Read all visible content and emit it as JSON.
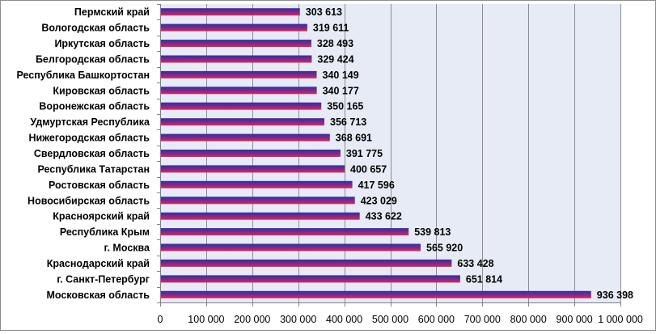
{
  "chart_data": {
    "type": "bar",
    "orientation": "horizontal",
    "categories": [
      "Пермский край",
      "Вологодская область",
      "Иркутская область",
      "Белгородская область",
      "Республика Башкортостан",
      "Кировская область",
      "Воронежская область",
      "Удмуртская Республика",
      "Нижегородская область",
      "Свердловская область",
      "Республика Татарстан",
      "Ростовская область",
      "Новосибирская область",
      "Красноярский край",
      "Республика Крым",
      "г. Москва",
      "Краснодарский край",
      "г. Санкт-Петербург",
      "Московская область"
    ],
    "values": [
      303613,
      319611,
      328493,
      329424,
      340149,
      340177,
      350165,
      356713,
      368691,
      391775,
      400657,
      417596,
      423029,
      433622,
      539813,
      565920,
      633428,
      651814,
      936398
    ],
    "value_labels": [
      "303 613",
      "319 611",
      "328 493",
      "329 424",
      "340 149",
      "340 177",
      "350 165",
      "356 713",
      "368 691",
      "391 775",
      "400 657",
      "417 596",
      "423 029",
      "433 622",
      "539 813",
      "565 920",
      "633 428",
      "651 814",
      "936 398"
    ],
    "xlim": [
      0,
      1000000
    ],
    "x_ticks": [
      0,
      100000,
      200000,
      300000,
      400000,
      500000,
      600000,
      700000,
      800000,
      900000,
      1000000
    ],
    "x_tick_labels": [
      "0",
      "100 000",
      "200 000",
      "300 000",
      "400 000",
      "500 000",
      "600 000",
      "700 000",
      "800 000",
      "900 000",
      "1 000 000"
    ],
    "title": "",
    "xlabel": "",
    "ylabel": "",
    "grid": "vertical",
    "legend": "none",
    "colors": {
      "bar_top": "#2e2ea8",
      "bar_mid": "#7a2a8a",
      "bar_bottom": "#e0245a",
      "plot_background": "#e6ebf5",
      "gridline": "#8e8e8e",
      "axis": "#808080"
    }
  }
}
